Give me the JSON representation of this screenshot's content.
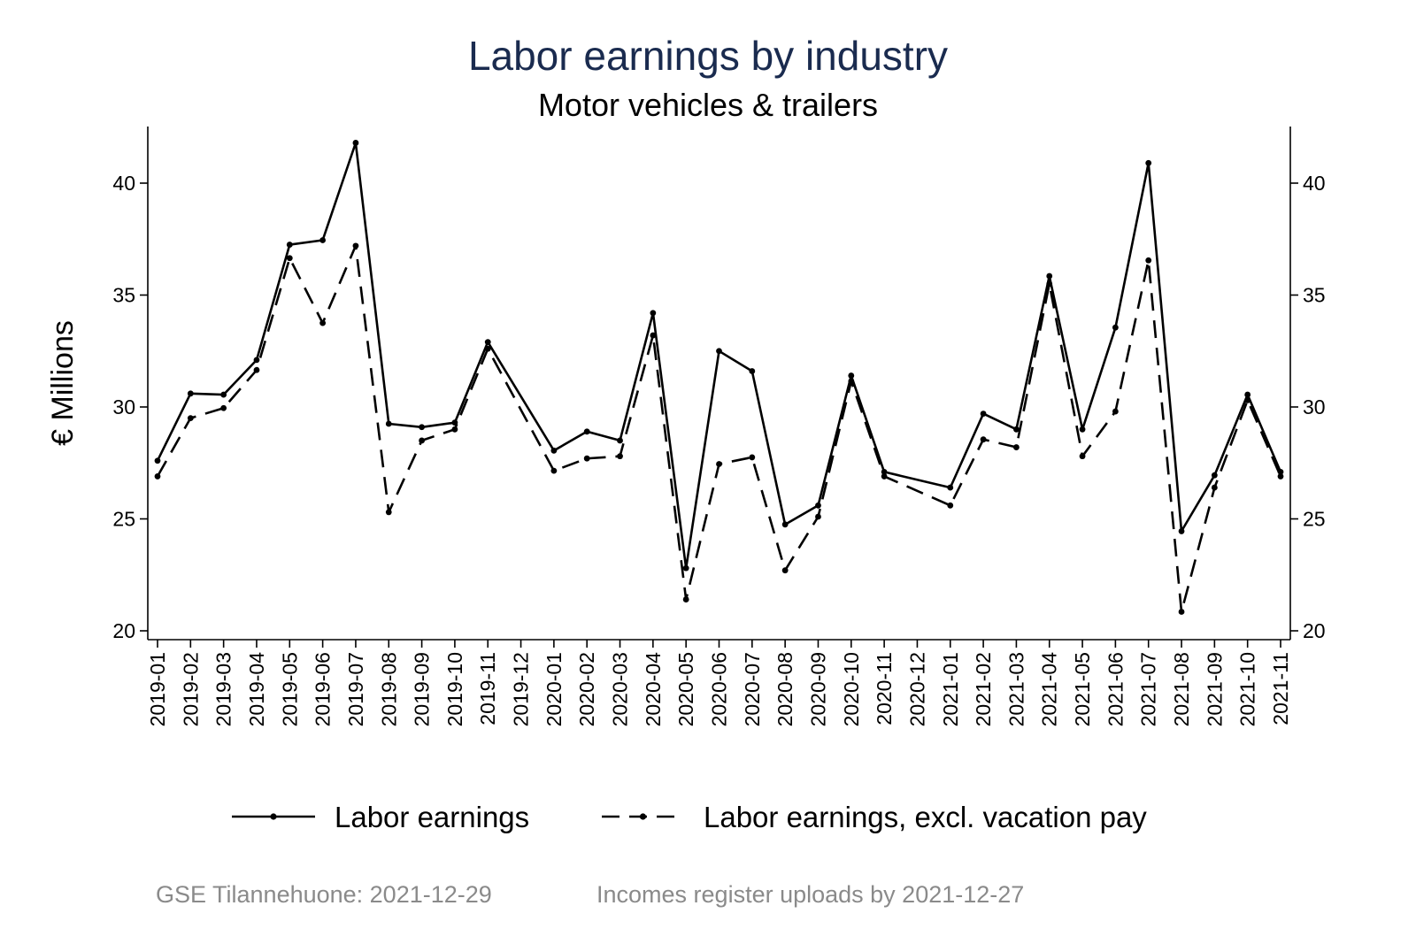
{
  "title": "Labor earnings by industry",
  "subtitle": "Motor vehicles & trailers",
  "footer": {
    "left": "GSE Tilannehuone: 2021-12-29",
    "right": "Incomes register uploads by 2021-12-27"
  },
  "colors": {
    "title": "#1a2b4f",
    "series": "#000000",
    "footer": "#8a8a8a"
  },
  "chart_data": {
    "type": "line",
    "title": "Labor earnings by industry",
    "subtitle": "Motor vehicles & trailers",
    "xlabel": "",
    "ylabel": "€ Millions",
    "ylim": [
      20,
      42
    ],
    "yticks": [
      20,
      25,
      30,
      35,
      40
    ],
    "ytick_labels": [
      "20",
      "25",
      "30",
      "35",
      "40"
    ],
    "y_axis_right": true,
    "legend_position": "bottom",
    "grid": false,
    "x": [
      "2019-01",
      "2019-02",
      "2019-03",
      "2019-04",
      "2019-05",
      "2019-06",
      "2019-07",
      "2019-08",
      "2019-09",
      "2019-10",
      "2019-11",
      "2019-12",
      "2020-01",
      "2020-02",
      "2020-03",
      "2020-04",
      "2020-05",
      "2020-06",
      "2020-07",
      "2020-08",
      "2020-09",
      "2020-10",
      "2020-11",
      "2020-12",
      "2021-01",
      "2021-02",
      "2021-03",
      "2021-04",
      "2021-05",
      "2021-06",
      "2021-07",
      "2021-08",
      "2021-09",
      "2021-10",
      "2021-11"
    ],
    "series": [
      {
        "name": "Labor earnings",
        "style": "solid",
        "values": [
          27.6,
          30.6,
          30.55,
          32.1,
          37.25,
          37.45,
          41.8,
          29.25,
          29.1,
          29.3,
          32.9,
          null,
          28.05,
          28.9,
          28.5,
          34.2,
          22.8,
          32.5,
          31.6,
          24.75,
          25.6,
          31.4,
          27.1,
          null,
          26.4,
          29.7,
          29.0,
          35.85,
          29.0,
          33.55,
          40.9,
          24.45,
          26.95,
          30.55,
          27.1
        ]
      },
      {
        "name": "Labor earnings, excl. vacation pay",
        "style": "dashed",
        "values": [
          26.9,
          29.5,
          29.95,
          31.65,
          36.65,
          33.75,
          37.2,
          25.3,
          28.5,
          29.0,
          32.6,
          null,
          27.15,
          27.7,
          27.8,
          33.2,
          21.4,
          27.45,
          27.75,
          22.7,
          25.1,
          31.15,
          26.9,
          null,
          25.6,
          28.55,
          28.2,
          35.5,
          27.8,
          29.8,
          36.55,
          20.85,
          26.4,
          30.3,
          26.9
        ]
      }
    ]
  }
}
